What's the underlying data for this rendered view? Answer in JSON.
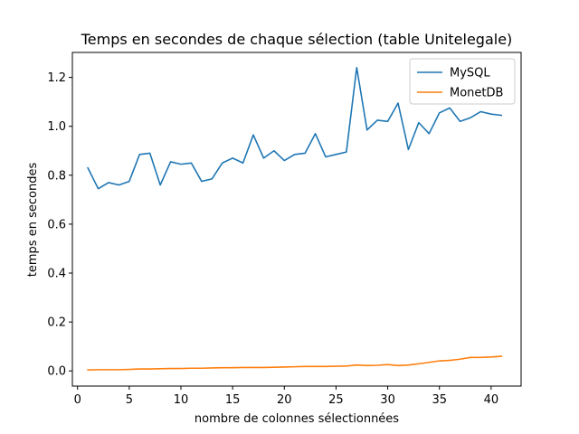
{
  "chart_data": {
    "type": "line",
    "title": "Temps en secondes de chaque sélection (table Unitelegale)",
    "xlabel": "nombre de colonnes sélectionnées",
    "ylabel": "temps en secondes",
    "xlim": [
      -0.5,
      42.9
    ],
    "ylim": [
      -0.062,
      1.302
    ],
    "xticks": [
      0,
      5,
      10,
      15,
      20,
      25,
      30,
      35,
      40
    ],
    "xtick_labels": [
      "0",
      "5",
      "10",
      "15",
      "20",
      "25",
      "30",
      "35",
      "40"
    ],
    "yticks": [
      0.0,
      0.2,
      0.4,
      0.6,
      0.8,
      1.0,
      1.2
    ],
    "ytick_labels": [
      "0.0",
      "0.2",
      "0.4",
      "0.6",
      "0.8",
      "1.0",
      "1.2"
    ],
    "grid": false,
    "legend_position": "top-right",
    "x": [
      1,
      2,
      3,
      4,
      5,
      6,
      7,
      8,
      9,
      10,
      11,
      12,
      13,
      14,
      15,
      16,
      17,
      18,
      19,
      20,
      21,
      22,
      23,
      24,
      25,
      26,
      27,
      28,
      29,
      30,
      31,
      32,
      33,
      34,
      35,
      36,
      37,
      38,
      39,
      40,
      41
    ],
    "series": [
      {
        "name": "MySQL",
        "color": "#1f77b4",
        "values": [
          0.83,
          0.745,
          0.77,
          0.76,
          0.775,
          0.885,
          0.89,
          0.76,
          0.855,
          0.845,
          0.85,
          0.775,
          0.785,
          0.85,
          0.87,
          0.85,
          0.965,
          0.87,
          0.9,
          0.86,
          0.885,
          0.89,
          0.97,
          0.875,
          0.885,
          0.895,
          1.24,
          0.985,
          1.025,
          1.02,
          1.095,
          0.905,
          1.015,
          0.97,
          1.055,
          1.075,
          1.02,
          1.035,
          1.06,
          1.05,
          1.045
        ]
      },
      {
        "name": "MonetDB",
        "color": "#ff7f0e",
        "values": [
          0.004,
          0.005,
          0.005,
          0.005,
          0.006,
          0.008,
          0.008,
          0.009,
          0.01,
          0.01,
          0.011,
          0.011,
          0.012,
          0.013,
          0.013,
          0.014,
          0.014,
          0.014,
          0.015,
          0.016,
          0.017,
          0.018,
          0.018,
          0.018,
          0.019,
          0.02,
          0.024,
          0.022,
          0.023,
          0.026,
          0.022,
          0.024,
          0.029,
          0.035,
          0.041,
          0.043,
          0.048,
          0.055,
          0.055,
          0.057,
          0.06
        ]
      }
    ]
  }
}
